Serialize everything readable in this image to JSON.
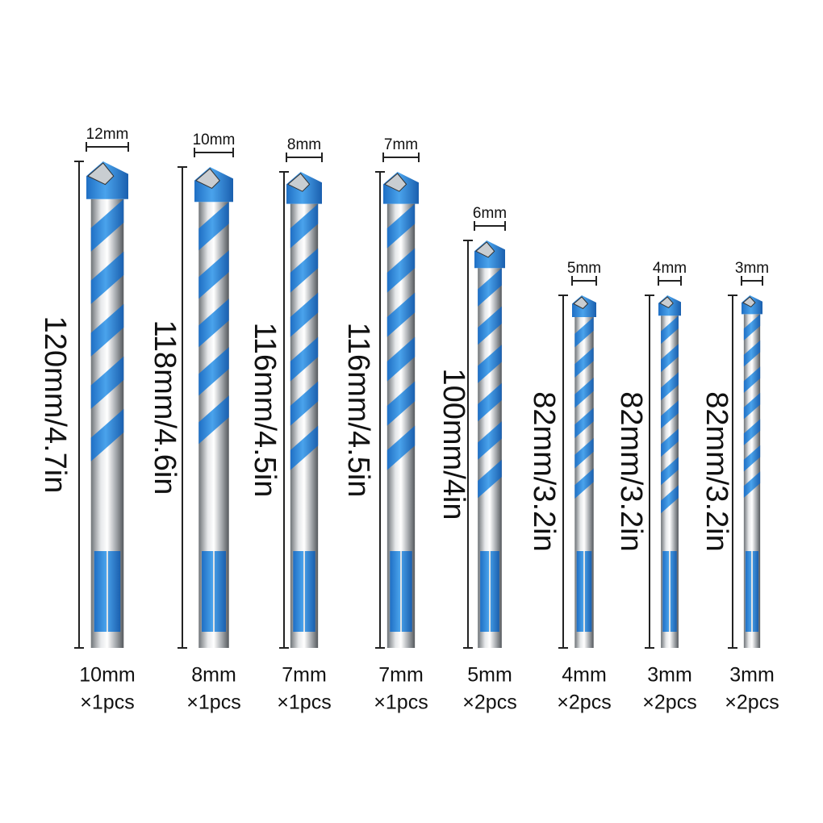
{
  "bits": [
    {
      "tip": "12mm",
      "length": "120mm/4.7in",
      "shank": "10mm",
      "quantity": "×1pcs"
    },
    {
      "tip": "10mm",
      "length": "118mm/4.6in",
      "shank": "8mm",
      "quantity": "×1pcs"
    },
    {
      "tip": "8mm",
      "length": "116mm/4.5in",
      "shank": "7mm",
      "quantity": "×1pcs"
    },
    {
      "tip": "7mm",
      "length": "116mm/4.5in",
      "shank": "7mm",
      "quantity": "×1pcs"
    },
    {
      "tip": "6mm",
      "length": "100mm/4in",
      "shank": "5mm",
      "quantity": "×2pcs"
    },
    {
      "tip": "5mm",
      "length": "82mm/3.2in",
      "shank": "4mm",
      "quantity": "×2pcs"
    },
    {
      "tip": "4mm",
      "length": "82mm/3.2in",
      "shank": "3mm",
      "quantity": "×2pcs"
    },
    {
      "tip": "3mm",
      "length": "82mm/3.2in",
      "shank": "3mm",
      "quantity": "×2pcs"
    }
  ]
}
